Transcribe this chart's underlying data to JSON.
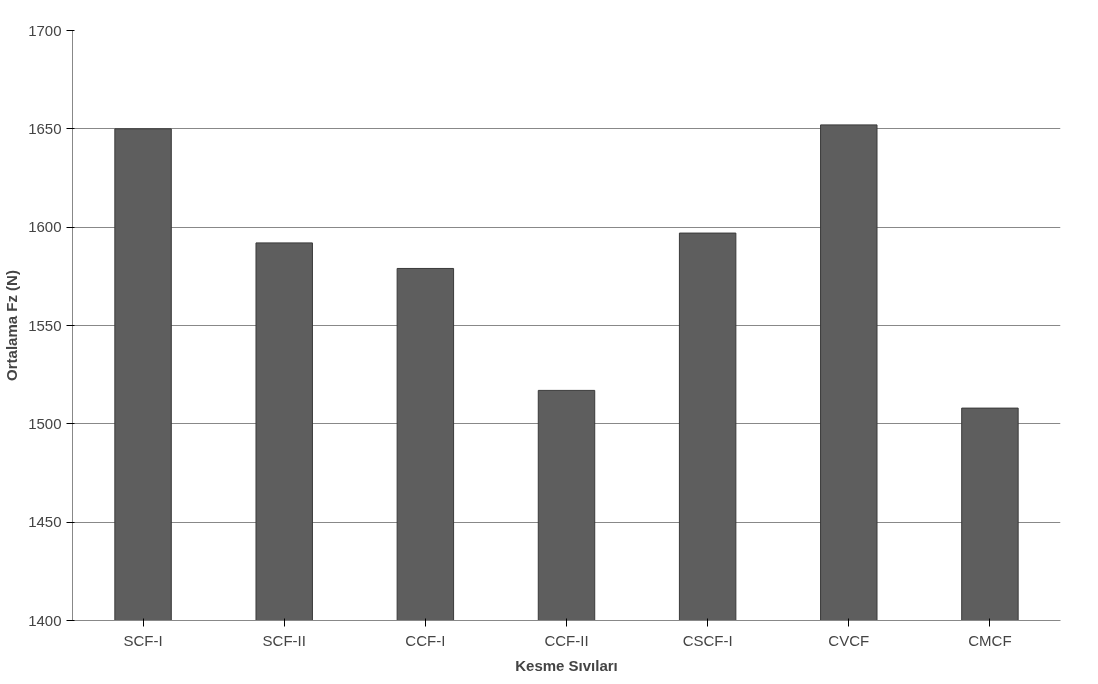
{
  "chart_data": {
    "type": "bar",
    "xlabel": "Kesme Sıvıları",
    "ylabel": "Ortalama Fz (N)",
    "categories": [
      "SCF-I",
      "SCF-II",
      "CCF-I",
      "CCF-II",
      "CSCF-I",
      "CVCF",
      "CMCF"
    ],
    "values": [
      1650,
      1592,
      1579,
      1517,
      1597,
      1652,
      1508
    ],
    "color": "#5e5e5e",
    "ylim": [
      1400,
      1700
    ],
    "yticks": [
      1400,
      1450,
      1500,
      1550,
      1600,
      1650,
      1700
    ],
    "grid": "y"
  }
}
